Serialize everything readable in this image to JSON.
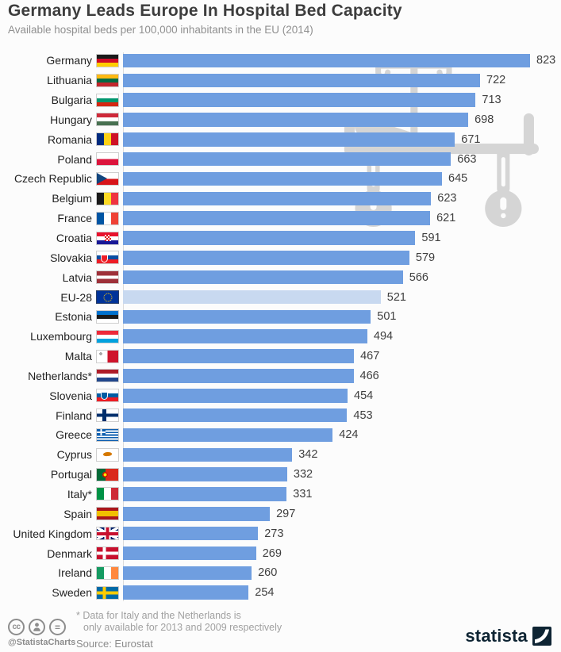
{
  "title": "Germany Leads Europe In Hospital Bed Capacity",
  "subtitle": "Available hospital beds per 100,000 inhabitants in the EU (2014)",
  "chart_data": {
    "type": "bar",
    "orientation": "horizontal",
    "title": "Germany Leads Europe In Hospital Bed Capacity",
    "subtitle": "Available hospital beds per 100,000 inhabitants in the EU (2014)",
    "unit": "beds per 100,000 inhabitants",
    "value_range": [
      0,
      823
    ],
    "grid": false,
    "legend": false,
    "categories": [
      "Germany",
      "Lithuania",
      "Bulgaria",
      "Hungary",
      "Romania",
      "Poland",
      "Czech Republic",
      "Belgium",
      "France",
      "Croatia",
      "Slovakia",
      "Latvia",
      "EU-28",
      "Estonia",
      "Luxembourg",
      "Malta",
      "Netherlands*",
      "Slovenia",
      "Finland",
      "Greece",
      "Cyprus",
      "Portugal",
      "Italy*",
      "Spain",
      "United Kingdom",
      "Denmark",
      "Ireland",
      "Sweden"
    ],
    "values": [
      823,
      722,
      713,
      698,
      671,
      663,
      645,
      623,
      621,
      591,
      579,
      566,
      521,
      501,
      494,
      467,
      466,
      454,
      453,
      424,
      342,
      332,
      331,
      297,
      273,
      269,
      260,
      254
    ],
    "flags": [
      "de",
      "lt",
      "bg",
      "hu",
      "ro",
      "pl",
      "cz",
      "be",
      "fr",
      "hr",
      "sk",
      "lv",
      "eu",
      "ee",
      "lu",
      "mt",
      "nl",
      "si",
      "fi",
      "gr",
      "cy",
      "pt",
      "it",
      "es",
      "gb",
      "dk",
      "ie",
      "se"
    ],
    "highlight_category": "EU-28",
    "colors": {
      "bar": "#6f9ee0",
      "highlight_bar": "#c8d9f0",
      "value_label": "#3f3f3f",
      "watermark": "#d5d5d5"
    }
  },
  "watermark_icon": "hospital-bed-icon",
  "footer": {
    "footnote_line1": "* Data for Italy and the Netherlands is",
    "footnote_line2": "only available for 2013 and 2009 respectively",
    "source": "Source: Eurostat",
    "credit": "@StatistaCharts",
    "license_icons": [
      "cc-icon",
      "attribution-person-icon",
      "no-derivatives-equal-icon"
    ],
    "brand": "statista"
  }
}
